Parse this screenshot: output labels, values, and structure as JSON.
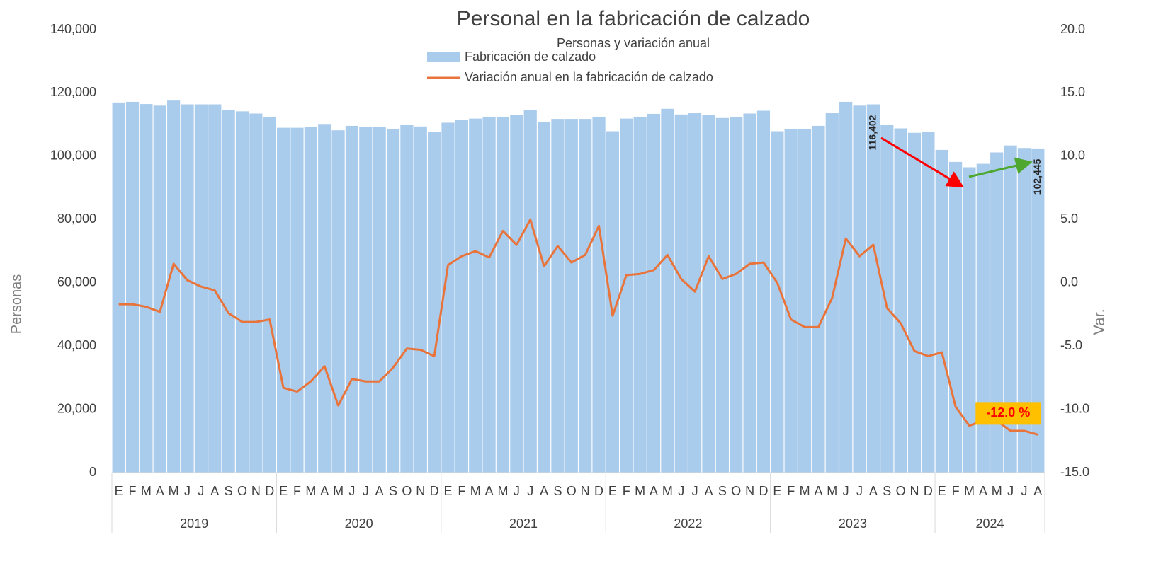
{
  "chart_data": {
    "type": "bar_line",
    "title": "Personal en la fabricación de calzado",
    "subtitle": "Personas y variación anual",
    "y_label": "Personas",
    "y2_label": "Var.",
    "categories": [
      "E",
      "F",
      "M",
      "A",
      "M",
      "J",
      "J",
      "A",
      "S",
      "O",
      "N",
      "D",
      "E",
      "F",
      "M",
      "A",
      "M",
      "J",
      "J",
      "A",
      "S",
      "O",
      "N",
      "D",
      "E",
      "F",
      "M",
      "A",
      "M",
      "J",
      "J",
      "A",
      "S",
      "O",
      "N",
      "D",
      "E",
      "F",
      "M",
      "A",
      "M",
      "J",
      "J",
      "A",
      "S",
      "O",
      "N",
      "D",
      "E",
      "F",
      "M",
      "A",
      "M",
      "J",
      "J",
      "A",
      "S",
      "O",
      "N",
      "D",
      "E",
      "F",
      "M",
      "A",
      "M",
      "J",
      "J",
      "A"
    ],
    "years": [
      "2019",
      "2020",
      "2021",
      "2022",
      "2023",
      "2024"
    ],
    "series": [
      {
        "name": "Fabricación de calzado",
        "type": "bar",
        "color": "#a9cbec",
        "values": [
          117000,
          117200,
          116500,
          116000,
          117600,
          116400,
          116400,
          116400,
          114500,
          114200,
          113500,
          112500,
          109000,
          109000,
          109200,
          110200,
          108200,
          109600,
          109200,
          109300,
          108700,
          110000,
          109400,
          107800,
          110600,
          111400,
          111900,
          112400,
          112500,
          113000,
          114600,
          110800,
          111800,
          111800,
          111800,
          112500,
          107900,
          111900,
          112500,
          113400,
          115000,
          113200,
          113600,
          113000,
          112100,
          112500,
          113500,
          114400,
          107900,
          108700,
          108700,
          109600,
          113600,
          117200,
          116000,
          116402,
          109900,
          108800,
          107400,
          107600,
          102000,
          98200,
          96500,
          97600,
          101200,
          103400,
          102600,
          102445
        ],
        "value_labels": [
          null,
          null,
          null,
          null,
          null,
          null,
          null,
          null,
          null,
          null,
          null,
          null,
          null,
          null,
          null,
          null,
          null,
          null,
          null,
          null,
          null,
          null,
          null,
          null,
          null,
          null,
          null,
          null,
          null,
          null,
          null,
          null,
          null,
          null,
          null,
          null,
          null,
          null,
          null,
          null,
          null,
          null,
          null,
          null,
          null,
          null,
          null,
          null,
          null,
          null,
          null,
          null,
          null,
          null,
          null,
          "116,402",
          null,
          null,
          null,
          null,
          null,
          null,
          null,
          null,
          null,
          null,
          null,
          "102,445"
        ]
      },
      {
        "name": "Variación anual en la fabricación de calzado",
        "type": "line",
        "axis": "y2",
        "color": "#e8743b",
        "values": [
          -1.7,
          -1.7,
          -1.9,
          -2.3,
          1.5,
          0.2,
          -0.3,
          -0.6,
          -2.4,
          -3.1,
          -3.1,
          -2.9,
          -8.3,
          -8.6,
          -7.8,
          -6.6,
          -9.7,
          -7.6,
          -7.8,
          -7.8,
          -6.7,
          -5.2,
          -5.3,
          -5.8,
          1.4,
          2.1,
          2.5,
          2.0,
          4.1,
          3.0,
          5.0,
          1.3,
          2.9,
          1.6,
          2.2,
          4.5,
          -2.6,
          0.6,
          0.7,
          1.0,
          2.2,
          0.3,
          -0.7,
          2.1,
          0.3,
          0.7,
          1.5,
          1.6,
          0.0,
          -2.9,
          -3.5,
          -3.5,
          -1.2,
          3.5,
          2.1,
          3.0,
          -2.0,
          -3.2,
          -5.4,
          -5.8,
          -5.5,
          -9.8,
          -11.3,
          -10.9,
          -10.9,
          -11.7,
          -11.7,
          -12.0
        ],
        "value_labels": [
          null,
          null,
          null,
          null,
          null,
          null,
          null,
          null,
          null,
          null,
          null,
          null,
          null,
          null,
          null,
          null,
          null,
          null,
          null,
          null,
          null,
          null,
          null,
          null,
          null,
          null,
          null,
          null,
          null,
          null,
          null,
          null,
          null,
          null,
          null,
          null,
          null,
          null,
          null,
          null,
          null,
          null,
          null,
          null,
          null,
          null,
          null,
          null,
          null,
          null,
          null,
          null,
          null,
          null,
          null,
          null,
          null,
          null,
          null,
          null,
          null,
          null,
          null,
          null,
          null,
          null,
          null,
          "-12.0 %"
        ]
      }
    ],
    "ylim": [
      0,
      140000
    ],
    "yticks": [
      0,
      {
        "value": 20000,
        "label": "20,000"
      },
      {
        "value": 40000,
        "label": "40,000"
      },
      {
        "value": 60000,
        "label": "60,000"
      },
      {
        "value": 80000,
        "label": "80,000"
      },
      {
        "value": 100000,
        "label": "100,000"
      },
      {
        "value": 120000,
        "label": "120,000"
      },
      {
        "value": 140000,
        "label": "140,000"
      }
    ],
    "y2lim": [
      -15,
      20
    ],
    "y2ticks": [
      {
        "value": -15,
        "label": "-15.0"
      },
      {
        "value": -10,
        "label": "-10.0"
      },
      {
        "value": -5,
        "label": "-5.0"
      },
      {
        "value": 0,
        "label": "0.0"
      },
      {
        "value": 5,
        "label": "5.0"
      },
      {
        "value": 10,
        "label": "10.0"
      },
      {
        "value": 15,
        "label": "15.0"
      },
      {
        "value": 20,
        "label": "20.0"
      }
    ],
    "grid": false,
    "legend": "top"
  }
}
